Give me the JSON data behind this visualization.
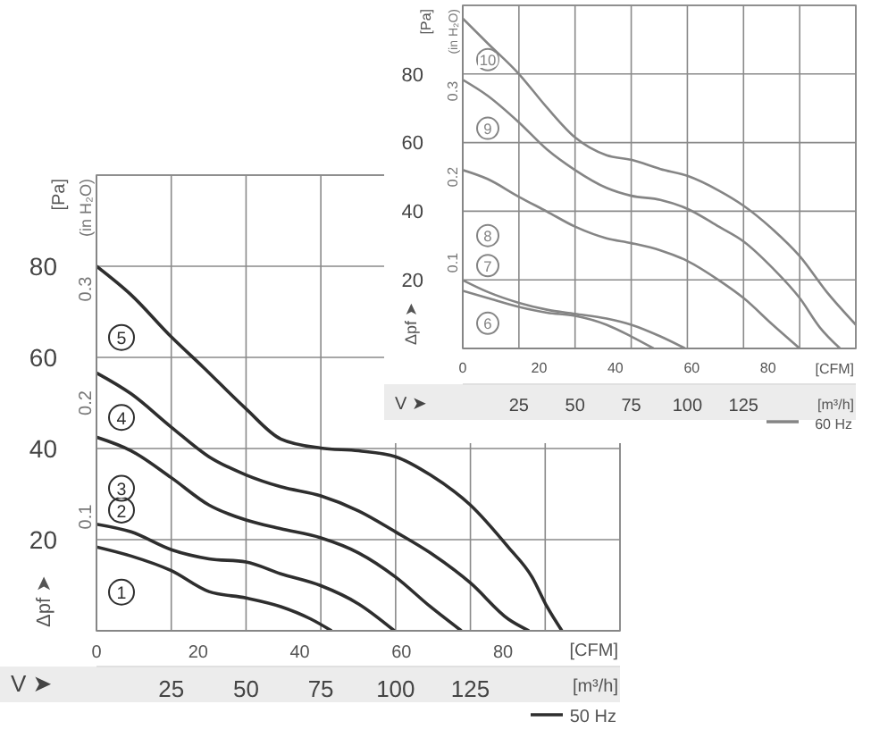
{
  "chart_data": [
    {
      "type": "line",
      "xlabel": "[m³/h]",
      "x2label": "[CFM]",
      "ylabel": "[Pa]",
      "y2label": "(in H₂O)",
      "annotations": [
        "Δpf ➤",
        "V ➤",
        "50 Hz"
      ],
      "xlim": [
        0,
        175
      ],
      "xticks": [
        25,
        50,
        75,
        100,
        125,
        {
          "value": 150,
          "label": null
        }
      ],
      "x2lim": [
        0,
        103
      ],
      "x2ticks": [
        0,
        20,
        40,
        60,
        80
      ],
      "ylim": [
        0,
        100
      ],
      "yticks": [
        20,
        40,
        60,
        80
      ],
      "y2lim": [
        0,
        0.4
      ],
      "y2ticks": [
        0.1,
        0.2,
        0.3
      ],
      "grid": true,
      "marker": "none",
      "line_style": "solid",
      "series": [
        {
          "name": "1",
          "color": "#2e2e2e",
          "x": [
            0,
            11.6,
            25,
            37.6,
            50,
            61.6,
            71.6,
            78.6
          ],
          "values": [
            18.4,
            16.4,
            13.2,
            8.6,
            7.2,
            5.3,
            2.6,
            0
          ]
        },
        {
          "name": "2",
          "color": "#2e2e2e",
          "x": [
            0,
            11.6,
            25,
            37.6,
            50,
            61.6,
            75,
            87.6,
            99.6
          ],
          "values": [
            23.4,
            21.7,
            17.8,
            15.8,
            15.1,
            12.5,
            9.9,
            5.9,
            0
          ]
        },
        {
          "name": "3",
          "color": "#2e2e2e",
          "x": [
            0,
            11.6,
            25,
            37.6,
            50,
            61.6,
            75,
            87.6,
            100,
            111.6,
            122
          ],
          "values": [
            42.5,
            39.5,
            33.6,
            27.6,
            24.3,
            22.4,
            20.4,
            17.1,
            11.8,
            5.3,
            0
          ]
        },
        {
          "name": "4",
          "color": "#2e2e2e",
          "x": [
            0,
            11.6,
            25,
            37.6,
            50,
            61.6,
            75,
            87.6,
            100,
            111.6,
            125,
            137.6,
            144.6
          ],
          "values": [
            56.6,
            52,
            44.7,
            38.2,
            34.2,
            31.6,
            29.6,
            26.3,
            21.7,
            17.1,
            10.5,
            2.6,
            0
          ]
        },
        {
          "name": "5",
          "color": "#2e2e2e",
          "x": [
            0,
            11.6,
            25,
            35.6,
            50,
            61.6,
            75,
            87.6,
            100,
            111.6,
            125,
            137.6,
            145.6,
            150.6,
            155.6
          ],
          "values": [
            80,
            73.7,
            64.5,
            57.9,
            48.7,
            42.1,
            40.1,
            39.5,
            38.2,
            34.2,
            27.6,
            18.4,
            11.8,
            5.3,
            0
          ]
        }
      ]
    },
    {
      "type": "line",
      "xlabel": "[m³/h]",
      "x2label": "[CFM]",
      "ylabel": "[Pa]",
      "y2label": "(in H₂O)",
      "annotations": [
        "Δpf ➤",
        "V ➤",
        "60 Hz"
      ],
      "xlim": [
        0,
        175
      ],
      "xticks": [
        25,
        50,
        75,
        100,
        125,
        {
          "value": 150,
          "label": null
        }
      ],
      "x2lim": [
        0,
        103
      ],
      "x2ticks": [
        0,
        20,
        40,
        60,
        80
      ],
      "ylim": [
        0,
        100
      ],
      "yticks": [
        20,
        40,
        60,
        80
      ],
      "y2lim": [
        0,
        0.4
      ],
      "y2ticks": [
        0.1,
        0.2,
        0.3
      ],
      "grid": true,
      "marker": "none",
      "line_style": "solid",
      "series": [
        {
          "name": "6",
          "color": "#858585",
          "x": [
            0,
            11,
            25,
            37.5,
            50,
            64,
            75,
            85
          ],
          "values": [
            16.8,
            14.7,
            12.1,
            10.4,
            9.5,
            6.9,
            3.5,
            0
          ]
        },
        {
          "name": "7",
          "color": "#858585",
          "x": [
            0,
            11,
            25,
            37.5,
            50,
            64,
            75,
            88,
            99
          ],
          "values": [
            19.9,
            16.5,
            13.3,
            11.3,
            10.1,
            8.7,
            6.9,
            3.5,
            0
          ]
        },
        {
          "name": "8",
          "color": "#858585",
          "x": [
            0,
            11,
            25,
            37.5,
            50,
            64,
            75,
            88,
            100,
            114,
            125,
            138,
            150
          ],
          "values": [
            52,
            49.4,
            44.2,
            39.9,
            35.5,
            32.1,
            30.7,
            28.6,
            25.5,
            19.9,
            14.7,
            6.9,
            0
          ]
        },
        {
          "name": "9",
          "color": "#858585",
          "x": [
            0,
            11,
            25,
            37.5,
            50,
            64,
            75,
            88,
            100,
            114,
            125,
            138,
            150,
            159,
            168
          ],
          "values": [
            78.3,
            73.7,
            65.9,
            58,
            52,
            46.8,
            44.5,
            43.3,
            40.7,
            35.5,
            31.2,
            23.4,
            14.7,
            6.1,
            0
          ]
        },
        {
          "name": "10",
          "color": "#858585",
          "x": [
            0,
            11,
            25,
            37.5,
            50,
            64,
            75,
            88,
            100,
            114,
            125,
            138,
            150,
            162,
            175
          ],
          "values": [
            96.2,
            89,
            80,
            70.2,
            61.5,
            56.3,
            55,
            52.3,
            50.3,
            46,
            41.6,
            34.7,
            26.9,
            16.5,
            6.9
          ]
        }
      ]
    }
  ]
}
